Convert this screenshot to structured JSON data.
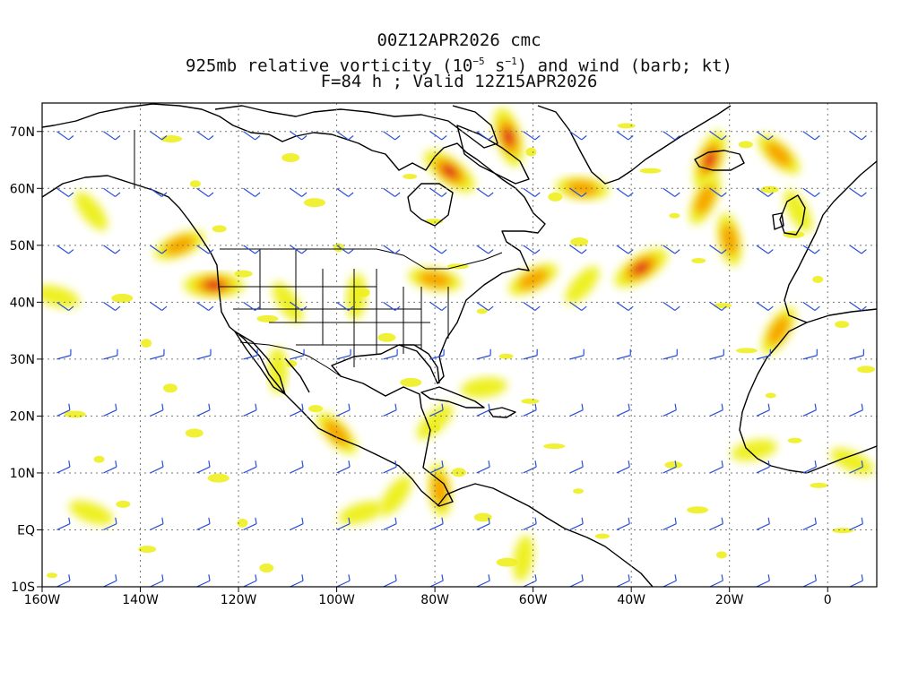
{
  "title": {
    "line1": "00Z12APR2026 cmc",
    "line2_pre": "925mb relative vorticity (10",
    "line2_exp1": "−5",
    "line2_mid": " s",
    "line2_exp2": "−1",
    "line2_post": ") and wind (barb; kt)",
    "line3": "F=84 h ; Valid 12Z15APR2026"
  },
  "lat_labels": [
    "70N",
    "60N",
    "50N",
    "40N",
    "30N",
    "20N",
    "10N",
    "EQ",
    "10S"
  ],
  "lat_values": [
    70,
    60,
    50,
    40,
    30,
    20,
    10,
    0,
    -10
  ],
  "lon_labels": [
    "160W",
    "140W",
    "120W",
    "100W",
    "80W",
    "60W",
    "40W",
    "20W",
    "0"
  ],
  "lon_values": [
    -160,
    -140,
    -120,
    -100,
    -80,
    -60,
    -40,
    -20,
    0
  ],
  "map_extent": {
    "lon": [
      -160,
      10
    ],
    "lat": [
      -10,
      75
    ]
  },
  "colors": {
    "shade_low": "#eef020",
    "shade_mid": "#f6a600",
    "shade_high": "#e01818",
    "barb": "#2a4fd8",
    "grid": "#777777"
  },
  "vorticity_features": [
    {
      "lon": -125,
      "lat": 43,
      "level": 3
    },
    {
      "lon": -77,
      "lat": 63,
      "level": 3
    },
    {
      "lon": -65,
      "lat": 69,
      "level": 3
    },
    {
      "lon": -24,
      "lat": 65,
      "level": 3
    },
    {
      "lon": -38,
      "lat": 46,
      "level": 3
    },
    {
      "lon": -50,
      "lat": 60,
      "level": 2
    },
    {
      "lon": -10,
      "lat": 66,
      "level": 2
    },
    {
      "lon": -20,
      "lat": 51,
      "level": 2
    },
    {
      "lon": -25,
      "lat": 58,
      "level": 2
    },
    {
      "lon": -60,
      "lat": 44,
      "level": 2
    },
    {
      "lon": -80,
      "lat": 44,
      "level": 2
    },
    {
      "lon": -100,
      "lat": 17,
      "level": 2
    },
    {
      "lon": -79,
      "lat": 7,
      "level": 2
    },
    {
      "lon": -10,
      "lat": 35,
      "level": 2
    },
    {
      "lon": -132,
      "lat": 50,
      "level": 2
    },
    {
      "lon": -157,
      "lat": 41,
      "level": 1
    },
    {
      "lon": -150,
      "lat": 56,
      "level": 1
    },
    {
      "lon": -112,
      "lat": 28,
      "level": 1
    },
    {
      "lon": -88,
      "lat": 6,
      "level": 1
    },
    {
      "lon": -95,
      "lat": 3,
      "level": 1
    },
    {
      "lon": -150,
      "lat": 3,
      "level": 1
    },
    {
      "lon": -110,
      "lat": 40,
      "level": 1
    },
    {
      "lon": -96,
      "lat": 41,
      "level": 1
    },
    {
      "lon": -50,
      "lat": 43,
      "level": 1
    },
    {
      "lon": -15,
      "lat": 14,
      "level": 1
    },
    {
      "lon": 5,
      "lat": 12,
      "level": 1
    },
    {
      "lon": -6,
      "lat": 56,
      "level": 1
    },
    {
      "lon": -62,
      "lat": -5,
      "level": 1
    },
    {
      "lon": -80,
      "lat": 19,
      "level": 1
    },
    {
      "lon": -70,
      "lat": 25,
      "level": 1
    }
  ]
}
